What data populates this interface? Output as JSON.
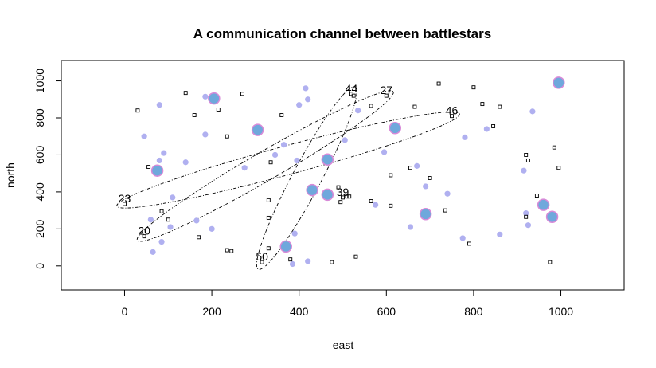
{
  "chart_data": {
    "type": "scatter",
    "title": "A communication channel between battlestars",
    "xlabel": "east",
    "ylabel": "north",
    "xlim": [
      -145,
      1145
    ],
    "ylim": [
      -130,
      1110
    ],
    "x_ticks": [
      0,
      200,
      400,
      600,
      800,
      1000
    ],
    "y_ticks": [
      0,
      200,
      400,
      600,
      800,
      1000
    ],
    "grid": false,
    "colors": {
      "small_point_fill": "#b0b0f0",
      "large_point_fill": "#6fa8dc",
      "large_point_stroke": "#d88ad8",
      "square_stroke": "#000000",
      "ellipse_stroke": "#000000"
    },
    "series": [
      {
        "marker": "small-circle",
        "points": [
          [
            80,
            870
          ],
          [
            45,
            700
          ],
          [
            90,
            610
          ],
          [
            80,
            570
          ],
          [
            140,
            560
          ],
          [
            185,
            710
          ],
          [
            185,
            915
          ],
          [
            60,
            250
          ],
          [
            105,
            210
          ],
          [
            110,
            370
          ],
          [
            165,
            245
          ],
          [
            200,
            200
          ],
          [
            65,
            75
          ],
          [
            85,
            130
          ],
          [
            275,
            530
          ],
          [
            345,
            600
          ],
          [
            365,
            655
          ],
          [
            395,
            570
          ],
          [
            400,
            870
          ],
          [
            420,
            900
          ],
          [
            415,
            960
          ],
          [
            505,
            680
          ],
          [
            390,
            175
          ],
          [
            385,
            10
          ],
          [
            420,
            25
          ],
          [
            535,
            840
          ],
          [
            595,
            615
          ],
          [
            575,
            330
          ],
          [
            655,
            210
          ],
          [
            670,
            540
          ],
          [
            690,
            430
          ],
          [
            740,
            390
          ],
          [
            780,
            695
          ],
          [
            775,
            150
          ],
          [
            830,
            740
          ],
          [
            860,
            170
          ],
          [
            935,
            835
          ],
          [
            915,
            515
          ],
          [
            920,
            285
          ],
          [
            925,
            220
          ]
        ]
      },
      {
        "marker": "large-circle",
        "points": [
          [
            205,
            905
          ],
          [
            305,
            735
          ],
          [
            75,
            515
          ],
          [
            370,
            105
          ],
          [
            430,
            410
          ],
          [
            465,
            575
          ],
          [
            465,
            385
          ],
          [
            620,
            745
          ],
          [
            690,
            280
          ],
          [
            960,
            330
          ],
          [
            980,
            265
          ],
          [
            995,
            990
          ]
        ]
      },
      {
        "marker": "open-square",
        "points": [
          [
            30,
            840
          ],
          [
            140,
            935
          ],
          [
            160,
            815
          ],
          [
            215,
            845
          ],
          [
            235,
            700
          ],
          [
            270,
            930
          ],
          [
            55,
            535
          ],
          [
            0,
            335
          ],
          [
            45,
            160
          ],
          [
            85,
            295
          ],
          [
            100,
            250
          ],
          [
            170,
            155
          ],
          [
            235,
            85
          ],
          [
            245,
            80
          ],
          [
            330,
            95
          ],
          [
            330,
            355
          ],
          [
            330,
            260
          ],
          [
            335,
            560
          ],
          [
            360,
            815
          ],
          [
            380,
            35
          ],
          [
            315,
            20
          ],
          [
            475,
            20
          ],
          [
            530,
            50
          ],
          [
            520,
            930
          ],
          [
            525,
            920
          ],
          [
            565,
            865
          ],
          [
            600,
            920
          ],
          [
            490,
            425
          ],
          [
            495,
            345
          ],
          [
            500,
            370
          ],
          [
            510,
            375
          ],
          [
            515,
            375
          ],
          [
            565,
            350
          ],
          [
            610,
            490
          ],
          [
            610,
            325
          ],
          [
            665,
            860
          ],
          [
            655,
            530
          ],
          [
            700,
            475
          ],
          [
            720,
            985
          ],
          [
            735,
            300
          ],
          [
            750,
            810
          ],
          [
            790,
            120
          ],
          [
            800,
            965
          ],
          [
            820,
            875
          ],
          [
            845,
            755
          ],
          [
            860,
            860
          ],
          [
            920,
            600
          ],
          [
            925,
            570
          ],
          [
            945,
            380
          ],
          [
            920,
            265
          ],
          [
            975,
            20
          ],
          [
            985,
            640
          ],
          [
            995,
            530
          ]
        ]
      }
    ],
    "labeled_points": [
      {
        "label": "23",
        "x": 0,
        "y": 335
      },
      {
        "label": "20",
        "x": 45,
        "y": 160
      },
      {
        "label": "50",
        "x": 315,
        "y": 20
      },
      {
        "label": "39",
        "x": 500,
        "y": 370
      },
      {
        "label": "44",
        "x": 520,
        "y": 930
      },
      {
        "label": "27",
        "x": 600,
        "y": 920
      },
      {
        "label": "46",
        "x": 750,
        "y": 810
      }
    ],
    "channel_ellipses": [
      {
        "from": "20",
        "to": "27"
      },
      {
        "from": "50",
        "to": "44"
      },
      {
        "from": "23",
        "to": "46"
      }
    ]
  }
}
